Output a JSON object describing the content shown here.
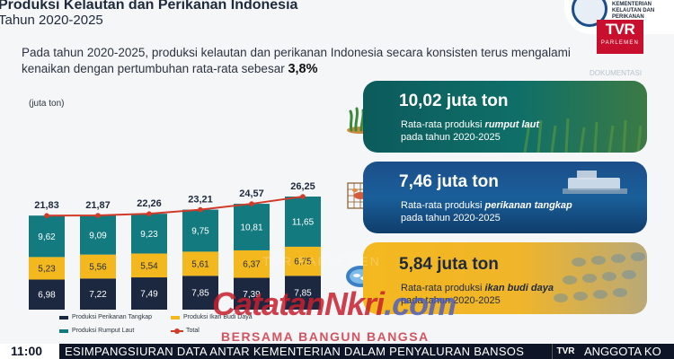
{
  "header": {
    "title": "Produksi Kelautan dan Perikanan Indonesia",
    "subtitle": "Tahun 2020-2025",
    "logo_text": [
      "KEMENTERIAN",
      "KELAUTAN DAN",
      "PERIKANAN"
    ]
  },
  "intro": {
    "line1": "Pada tahun 2020-2025, produksi kelautan dan perikanan Indonesia secara konsisten terus mengalami",
    "line2_prefix": "kenaikan dengan pertumbuhan rata-rata sebesar ",
    "line2_highlight": "3,8%"
  },
  "branding": {
    "tv_logo_main": "TVR",
    "tv_logo_sub": "PARLEMEN",
    "corner_caption": "DOKUMENTASI",
    "watermark_main": "CatatanNkri",
    "watermark_tld": ".com",
    "watermark_tagline": "BERSAMA BANGUN BANGSA",
    "watermark_ghost": "TVR PARLEMEN"
  },
  "chart_data": {
    "type": "bar",
    "stacked": true,
    "unit_label": "(juta ton)",
    "categories": [
      "2020",
      "2021",
      "2022",
      "2023",
      "2024",
      "2025"
    ],
    "series": [
      {
        "name": "Produksi Perikanan Tangkap",
        "color": "#1c2740",
        "values": [
          6.98,
          7.22,
          7.49,
          7.85,
          7.39,
          7.85
        ],
        "labels": [
          "6,98",
          "7,22",
          "7,49",
          "7,85",
          "7,39",
          "7,85"
        ]
      },
      {
        "name": "Produksi Ikan Budi Daya",
        "color": "#f4b81f",
        "values": [
          5.23,
          5.56,
          5.54,
          5.61,
          6.37,
          6.75
        ],
        "labels": [
          "5,23",
          "5,56",
          "5,54",
          "5,61",
          "6,37",
          "6,75"
        ]
      },
      {
        "name": "Produksi Rumput Laut",
        "color": "#137a7f",
        "values": [
          9.62,
          9.09,
          9.23,
          9.75,
          10.81,
          11.65
        ],
        "labels": [
          "9,62",
          "9,09",
          "9,23",
          "9,75",
          "10,81",
          "11,65"
        ]
      }
    ],
    "total": {
      "name": "Total",
      "color": "#d23a2a",
      "values": [
        21.83,
        21.87,
        22.26,
        23.21,
        24.57,
        26.25
      ],
      "labels": [
        "21,83",
        "21,87",
        "22,26",
        "23,21",
        "24,57",
        "26,25"
      ]
    },
    "legend_position": "bottom",
    "grid": false
  },
  "cards": [
    {
      "value": "10,02 juta ton",
      "desc_prefix": "Rata-rata produksi ",
      "desc_bold": "rumput laut",
      "desc_line2": "pada tahun 2020-2025",
      "icon": "seaweed-icon"
    },
    {
      "value": "7,46 juta ton",
      "desc_prefix": "Rata-rata produksi ",
      "desc_bold": "perikanan tangkap",
      "desc_line2": "pada tahun 2020-2025",
      "icon": "fishing-net-icon"
    },
    {
      "value": "5,84 juta ton",
      "desc_prefix": "Rata-rata produksi ",
      "desc_bold": "ikan budi daya",
      "desc_line2": "pada tahun 2020-2025",
      "icon": "fish-pond-icon"
    }
  ],
  "ticker": {
    "time": "11:00",
    "text": "ESIMPANGSIURAN DATA ANTAR KEMENTERIAN DALAM PENYALURAN BANSOS",
    "logo": "TVR",
    "text2": "ANGGOTA KO"
  }
}
